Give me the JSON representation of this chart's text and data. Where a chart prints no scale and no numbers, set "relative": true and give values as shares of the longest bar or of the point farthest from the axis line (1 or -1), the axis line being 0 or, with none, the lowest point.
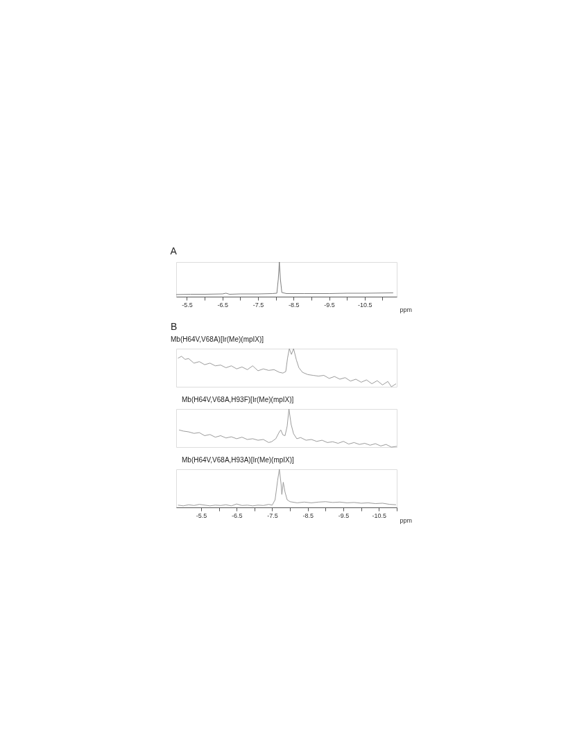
{
  "chart_data": [
    {
      "type": "line",
      "title": "A",
      "xlabel": "ppm",
      "relative": true,
      "xlim": [
        -5.2,
        -11.4
      ],
      "xticks": [
        -5.5,
        {
          "value": -6,
          "label": null
        },
        -6.5,
        {
          "value": -7,
          "label": null
        },
        -7.5,
        {
          "value": -8,
          "label": null
        },
        -8.5,
        {
          "value": -9,
          "label": null
        },
        -9.5,
        {
          "value": -10,
          "label": null
        },
        -10.5,
        {
          "value": -11,
          "label": null
        }
      ],
      "x": [
        -5.2,
        -5.6,
        -6.0,
        -6.5,
        -6.6,
        -6.7,
        -7.0,
        -7.5,
        -7.9,
        -8.03,
        -8.07,
        -8.1,
        -8.13,
        -8.17,
        -8.3,
        -8.8,
        -9.5,
        -10.0,
        -10.5,
        -11.3
      ],
      "series": [
        {
          "color": "#6e6e6e",
          "values": [
            0.06,
            0.07,
            0.07,
            0.08,
            0.1,
            0.07,
            0.08,
            0.08,
            0.09,
            0.1,
            0.5,
            1.0,
            0.5,
            0.12,
            0.09,
            0.09,
            0.09,
            0.1,
            0.1,
            0.11
          ]
        }
      ]
    },
    {
      "type": "line",
      "title": "B",
      "subtitle": "Mb(H64V,V68A)[Ir(Me)(mpIX)]",
      "relative": true,
      "tick_labels": false,
      "xlim": [
        -4.8,
        -11.0
      ],
      "x": [
        -4.85,
        -4.95,
        -5.05,
        -5.15,
        -5.3,
        -5.45,
        -5.6,
        -5.75,
        -5.9,
        -6.05,
        -6.2,
        -6.35,
        -6.5,
        -6.65,
        -6.8,
        -6.95,
        -7.1,
        -7.25,
        -7.4,
        -7.55,
        -7.7,
        -7.8,
        -7.88,
        -7.93,
        -7.98,
        -8.04,
        -8.1,
        -8.18,
        -8.25,
        -8.35,
        -8.5,
        -8.65,
        -8.8,
        -8.95,
        -9.1,
        -9.25,
        -9.4,
        -9.55,
        -9.7,
        -9.85,
        -10.0,
        -10.15,
        -10.3,
        -10.45,
        -10.6,
        -10.75,
        -10.85,
        -10.98
      ],
      "series": [
        {
          "color": "#909090",
          "values": [
            0.75,
            0.8,
            0.72,
            0.74,
            0.62,
            0.66,
            0.58,
            0.62,
            0.55,
            0.57,
            0.5,
            0.55,
            0.47,
            0.52,
            0.45,
            0.55,
            0.42,
            0.47,
            0.43,
            0.45,
            0.38,
            0.36,
            0.4,
            0.75,
            1.0,
            0.85,
            1.0,
            0.7,
            0.5,
            0.38,
            0.32,
            0.3,
            0.28,
            0.3,
            0.22,
            0.27,
            0.2,
            0.24,
            0.15,
            0.2,
            0.12,
            0.18,
            0.08,
            0.16,
            0.05,
            0.14,
            0.0,
            0.08
          ]
        }
      ]
    },
    {
      "type": "line",
      "title": "Mb(H64V,V68A,H93F)[Ir(Me)(mpIX)]",
      "relative": true,
      "tick_labels": false,
      "xlim": [
        -4.8,
        -11.0
      ],
      "x": [
        -4.88,
        -5.0,
        -5.15,
        -5.3,
        -5.45,
        -5.6,
        -5.75,
        -5.9,
        -6.05,
        -6.2,
        -6.35,
        -6.5,
        -6.65,
        -6.8,
        -6.95,
        -7.1,
        -7.25,
        -7.4,
        -7.48,
        -7.6,
        -7.7,
        -7.74,
        -7.8,
        -7.86,
        -7.92,
        -7.97,
        -8.03,
        -8.1,
        -8.19,
        -8.3,
        -8.45,
        -8.6,
        -8.75,
        -8.9,
        -9.05,
        -9.2,
        -9.35,
        -9.5,
        -9.65,
        -9.8,
        -9.95,
        -10.1,
        -10.25,
        -10.4,
        -10.55,
        -10.7,
        -10.85,
        -11.0
      ],
      "series": [
        {
          "color": "#909090",
          "values": [
            0.45,
            0.42,
            0.4,
            0.36,
            0.38,
            0.3,
            0.33,
            0.26,
            0.3,
            0.24,
            0.27,
            0.22,
            0.26,
            0.2,
            0.22,
            0.18,
            0.2,
            0.12,
            0.14,
            0.22,
            0.4,
            0.45,
            0.32,
            0.3,
            0.55,
            1.0,
            0.6,
            0.35,
            0.22,
            0.25,
            0.18,
            0.2,
            0.15,
            0.18,
            0.12,
            0.14,
            0.1,
            0.15,
            0.08,
            0.12,
            0.07,
            0.1,
            0.05,
            0.09,
            0.03,
            0.07,
            0.0,
            0.02
          ]
        }
      ]
    },
    {
      "type": "line",
      "title": "Mb(H64V,V68A,H93A)[Ir(Me)(mpIX)]",
      "xlabel": "ppm",
      "relative": true,
      "xlim": [
        -4.8,
        -11.0
      ],
      "xticks": [
        -5.5,
        {
          "value": -6,
          "label": null
        },
        -6.5,
        {
          "value": -7,
          "label": null
        },
        -7.5,
        {
          "value": -8,
          "label": null
        },
        -8.5,
        {
          "value": -9,
          "label": null
        },
        -9.5,
        {
          "value": -10,
          "label": null
        },
        -10.5,
        {
          "value": -11,
          "label": null
        }
      ],
      "x": [
        -4.85,
        -5.0,
        -5.15,
        -5.3,
        -5.45,
        -5.6,
        -5.75,
        -5.9,
        -6.05,
        -6.2,
        -6.35,
        -6.5,
        -6.65,
        -6.8,
        -6.95,
        -7.1,
        -7.25,
        -7.4,
        -7.5,
        -7.58,
        -7.65,
        -7.7,
        -7.75,
        -7.77,
        -7.81,
        -7.86,
        -7.92,
        -8.0,
        -8.2,
        -8.4,
        -8.6,
        -8.8,
        -9.0,
        -9.2,
        -9.4,
        -9.6,
        -9.8,
        -10.0,
        -10.2,
        -10.4,
        -10.6,
        -10.8,
        -10.98
      ],
      "series": [
        {
          "color": "#909090",
          "values": [
            0.06,
            0.04,
            0.07,
            0.05,
            0.08,
            0.06,
            0.04,
            0.06,
            0.05,
            0.07,
            0.04,
            0.09,
            0.05,
            0.06,
            0.04,
            0.06,
            0.05,
            0.08,
            0.06,
            0.2,
            0.7,
            1.0,
            0.6,
            0.34,
            0.66,
            0.4,
            0.2,
            0.15,
            0.12,
            0.14,
            0.12,
            0.14,
            0.15,
            0.13,
            0.14,
            0.12,
            0.13,
            0.11,
            0.12,
            0.1,
            0.11,
            0.08,
            0.07
          ]
        }
      ]
    }
  ]
}
